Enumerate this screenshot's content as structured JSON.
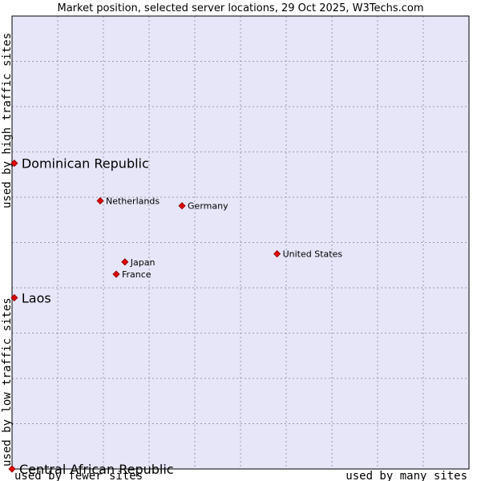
{
  "chart_data": {
    "type": "scatter",
    "title": "Market position, selected server locations, 29 Oct 2025, W3Techs.com",
    "xlabel_low": "used by fewer sites",
    "xlabel_high": "used by many sites",
    "ylabel_low": "used by low traffic sites",
    "ylabel_high": "used by high traffic sites",
    "xlim": [
      0,
      10
    ],
    "ylim": [
      0,
      10
    ],
    "grid": true,
    "points": [
      {
        "label": "Dominican Republic",
        "x": 0.05,
        "y": 6.75,
        "emphasis": true
      },
      {
        "label": "Laos",
        "x": 0.05,
        "y": 3.78,
        "emphasis": true
      },
      {
        "label": "Central African Republic",
        "x": 0.0,
        "y": 0.0,
        "emphasis": true
      },
      {
        "label": "Netherlands",
        "x": 1.93,
        "y": 5.92,
        "emphasis": false
      },
      {
        "label": "Germany",
        "x": 3.72,
        "y": 5.81,
        "emphasis": false
      },
      {
        "label": "United States",
        "x": 5.8,
        "y": 4.75,
        "emphasis": false
      },
      {
        "label": "Japan",
        "x": 2.47,
        "y": 4.57,
        "emphasis": false
      },
      {
        "label": "France",
        "x": 2.28,
        "y": 4.3,
        "emphasis": false
      }
    ]
  },
  "colors": {
    "plot_background": "#e6e6f8",
    "grid": "#9a9ab0",
    "border": "#000000",
    "marker": "#dd0000",
    "marker_outline": "#880000"
  }
}
